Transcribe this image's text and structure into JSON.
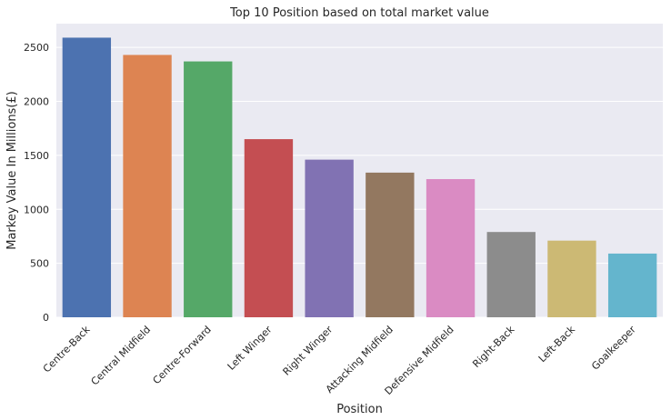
{
  "chart_data": {
    "type": "bar",
    "title": "Top 10 Position based on total market value",
    "xlabel": "Position",
    "ylabel": "Markey Value In Millions(£)",
    "categories": [
      "Centre-Back",
      "Central Midfield",
      "Centre-Forward",
      "Left Winger",
      "Right Winger",
      "Attacking Midfield",
      "Defensive Midfield",
      "Right-Back",
      "Left-Back",
      "Goalkeeper"
    ],
    "values": [
      2590,
      2430,
      2370,
      1650,
      1460,
      1340,
      1280,
      790,
      710,
      590
    ],
    "ylim": [
      0,
      2720
    ],
    "yticks": [
      0,
      500,
      1000,
      1500,
      2000,
      2500
    ],
    "grid": true,
    "colors": [
      "#4c72b0",
      "#dd8452",
      "#55a868",
      "#c44e52",
      "#8172b3",
      "#937860",
      "#da8bc3",
      "#8c8c8c",
      "#ccb974",
      "#64b5cd"
    ],
    "background_color": "#eaeaf2"
  }
}
